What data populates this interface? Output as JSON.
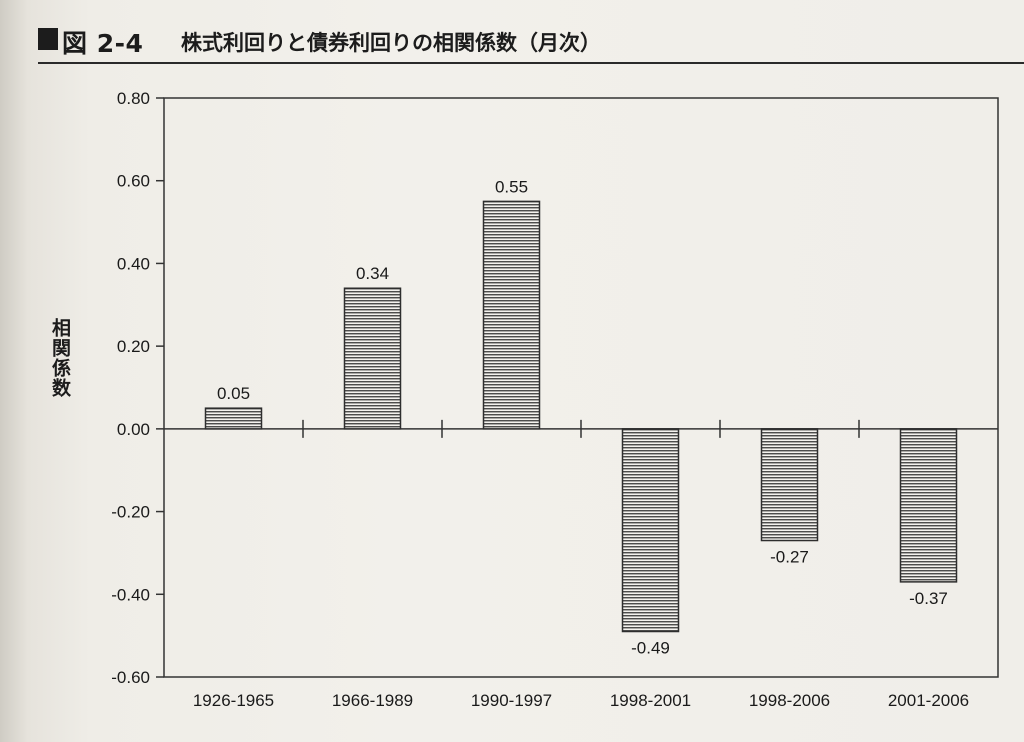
{
  "header": {
    "figure_number": "図 2-4",
    "title": "株式利回りと債券利回りの相関係数（月次）"
  },
  "chart_data": {
    "type": "bar",
    "title": "株式利回りと債券利回りの相関係数（月次）",
    "xlabel": "",
    "ylabel": "相関係数",
    "categories": [
      "1926-1965",
      "1966-1989",
      "1990-1997",
      "1998-2001",
      "1998-2006",
      "2001-2006"
    ],
    "values": [
      0.05,
      0.34,
      0.55,
      -0.49,
      -0.27,
      -0.37
    ],
    "data_labels": [
      "0.05",
      "0.34",
      "0.55",
      "-0.49",
      "-0.27",
      "-0.37"
    ],
    "ylim": [
      -0.6,
      0.8
    ],
    "yticks": [
      0.8,
      0.6,
      0.4,
      0.2,
      0.0,
      -0.2,
      -0.4,
      -0.6
    ],
    "ytick_labels": [
      "0.80",
      "0.60",
      "0.40",
      "0.20",
      "0.00",
      "-0.20",
      "-0.40",
      "-0.60"
    ],
    "grid": false,
    "bar_pattern": "horizontal-hatch",
    "colors": {
      "bar_line": "#3a3a3a",
      "bar_fill": "#f4f2ee",
      "axis": "#333333"
    }
  }
}
